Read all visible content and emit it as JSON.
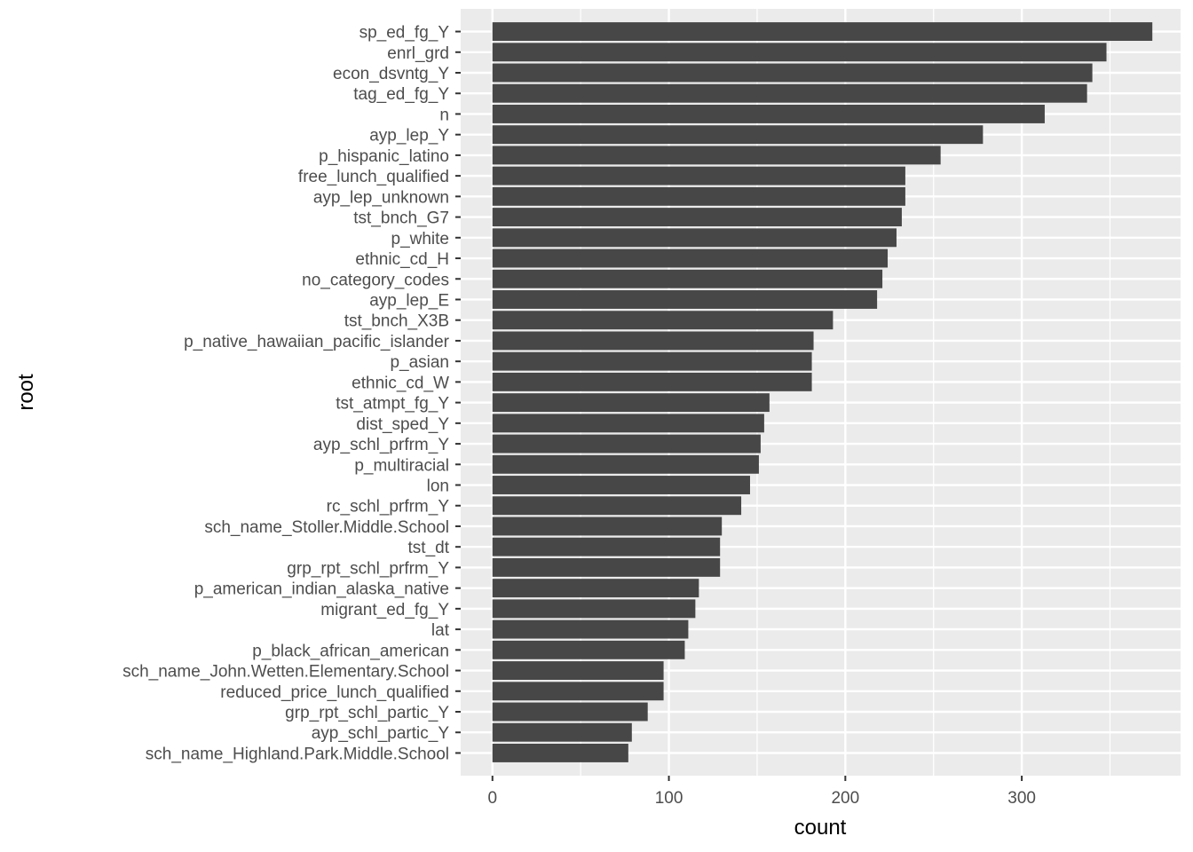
{
  "chart_data": {
    "type": "bar",
    "orientation": "horizontal",
    "xlabel": "count",
    "ylabel": "root",
    "xlim": [
      -18,
      390
    ],
    "x_ticks": [
      0,
      100,
      200,
      300
    ],
    "x_tick_labels": [
      "0",
      "100",
      "200",
      "300"
    ],
    "grid": true,
    "legend": "none",
    "bar_color": "#474747",
    "panel_color": "#ebebeb",
    "grid_color": "#ffffff",
    "categories": [
      "sp_ed_fg_Y",
      "enrl_grd",
      "econ_dsvntg_Y",
      "tag_ed_fg_Y",
      "n",
      "ayp_lep_Y",
      "p_hispanic_latino",
      "free_lunch_qualified",
      "ayp_lep_unknown",
      "tst_bnch_G7",
      "p_white",
      "ethnic_cd_H",
      "no_category_codes",
      "ayp_lep_E",
      "tst_bnch_X3B",
      "p_native_hawaiian_pacific_islander",
      "p_asian",
      "ethnic_cd_W",
      "tst_atmpt_fg_Y",
      "dist_sped_Y",
      "ayp_schl_prfrm_Y",
      "p_multiracial",
      "lon",
      "rc_schl_prfrm_Y",
      "sch_name_Stoller.Middle.School",
      "tst_dt",
      "grp_rpt_schl_prfrm_Y",
      "p_american_indian_alaska_native",
      "migrant_ed_fg_Y",
      "lat",
      "p_black_african_american",
      "sch_name_John.Wetten.Elementary.School",
      "reduced_price_lunch_qualified",
      "grp_rpt_schl_partic_Y",
      "ayp_schl_partic_Y",
      "sch_name_Highland.Park.Middle.School"
    ],
    "values": [
      374,
      348,
      340,
      337,
      313,
      278,
      254,
      234,
      234,
      232,
      229,
      224,
      221,
      218,
      193,
      182,
      181,
      181,
      157,
      154,
      152,
      151,
      146,
      141,
      130,
      129,
      129,
      117,
      115,
      111,
      109,
      97,
      97,
      88,
      79,
      77
    ]
  }
}
